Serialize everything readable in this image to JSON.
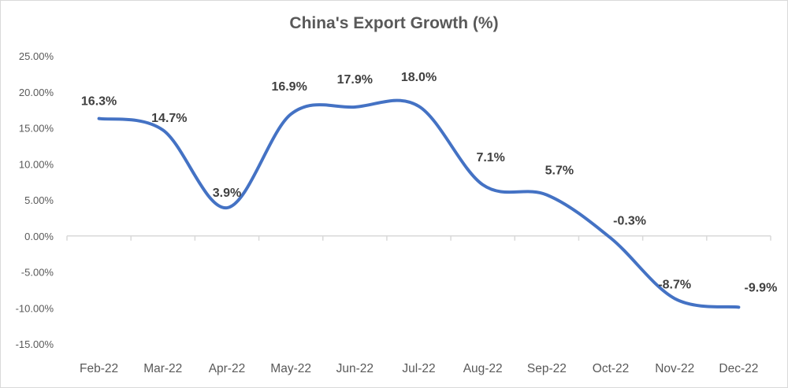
{
  "chart_data": {
    "type": "line",
    "title": "China's Export Growth (%)",
    "xlabel": "",
    "ylabel": "",
    "categories": [
      "Feb-22",
      "Mar-22",
      "Apr-22",
      "May-22",
      "Jun-22",
      "Jul-22",
      "Aug-22",
      "Sep-22",
      "Oct-22",
      "Nov-22",
      "Dec-22"
    ],
    "series": [
      {
        "name": "China's Export Growth (%)",
        "values": [
          16.3,
          14.7,
          3.9,
          16.9,
          17.9,
          18.0,
          7.1,
          5.7,
          -0.3,
          -8.7,
          -9.9
        ],
        "labels": [
          "16.3%",
          "14.7%",
          "3.9%",
          "16.9%",
          "17.9%",
          "18.0%",
          "7.1%",
          "5.7%",
          "-0.3%",
          "-8.7%",
          "-9.9%"
        ],
        "color": "#4472c4",
        "smooth": true
      }
    ],
    "ylim": [
      -15,
      25
    ],
    "yticks": [
      "25.00%",
      "20.00%",
      "15.00%",
      "10.00%",
      "5.00%",
      "0.00%",
      "-5.00%",
      "-10.00%",
      "-15.00%"
    ],
    "grid": false,
    "legend": "none"
  }
}
